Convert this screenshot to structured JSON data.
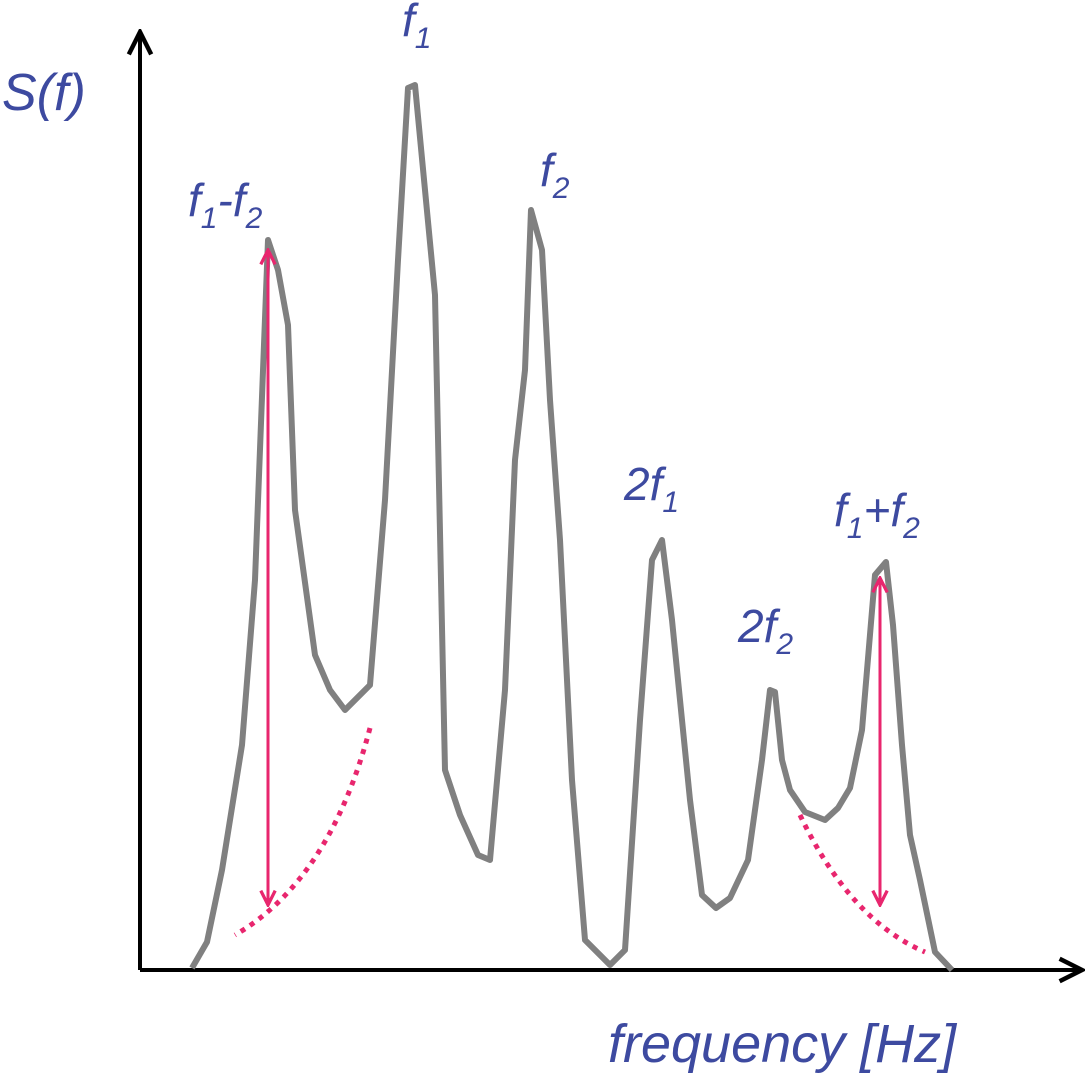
{
  "axes": {
    "y_label": "S(f)",
    "x_label": "frequency [Hz]"
  },
  "peaks": [
    {
      "parts": [
        {
          "text": "f",
          "sub": "1"
        }
      ]
    },
    {
      "parts": [
        {
          "text": "f",
          "sub": "2"
        }
      ]
    },
    {
      "parts": [
        {
          "text": "f",
          "sub": "1"
        },
        {
          "text": "-f",
          "sub": "2"
        }
      ]
    },
    {
      "parts": [
        {
          "text": "2f",
          "sub": "1"
        }
      ]
    },
    {
      "parts": [
        {
          "text": "2f",
          "sub": "2"
        }
      ]
    },
    {
      "parts": [
        {
          "text": "f",
          "sub": "1"
        },
        {
          "text": "+f",
          "sub": "2"
        }
      ]
    }
  ]
}
